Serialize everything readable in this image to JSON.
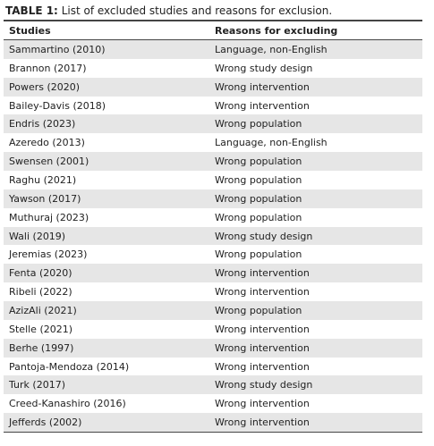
{
  "title": {
    "label": "TABLE 1:",
    "text": "List of excluded studies and reasons for exclusion."
  },
  "table": {
    "headers": [
      "Studies",
      "Reasons for excluding"
    ],
    "rows": [
      [
        "Sammartino (2010)",
        "Language, non-English"
      ],
      [
        "Brannon (2017)",
        "Wrong study design"
      ],
      [
        "Powers (2020)",
        "Wrong intervention"
      ],
      [
        "Bailey-Davis (2018)",
        "Wrong intervention"
      ],
      [
        "Endris (2023)",
        "Wrong population"
      ],
      [
        "Azeredo (2013)",
        "Language, non-English"
      ],
      [
        "Swensen (2001)",
        "Wrong population"
      ],
      [
        "Raghu (2021)",
        "Wrong population"
      ],
      [
        "Yawson (2017)",
        "Wrong population"
      ],
      [
        "Muthuraj (2023)",
        "Wrong population"
      ],
      [
        "Wali (2019)",
        "Wrong study design"
      ],
      [
        "Jeremias (2023)",
        "Wrong population"
      ],
      [
        "Fenta (2020)",
        "Wrong intervention"
      ],
      [
        "Ribeli (2022)",
        "Wrong intervention"
      ],
      [
        "AzizAli (2021)",
        "Wrong population"
      ],
      [
        "Stelle (2021)",
        "Wrong intervention"
      ],
      [
        "Berhe (1997)",
        "Wrong intervention"
      ],
      [
        "Pantoja-Mendoza (2014)",
        "Wrong intervention"
      ],
      [
        "Turk (2017)",
        "Wrong study design"
      ],
      [
        "Creed-Kanashiro (2016)",
        "Wrong intervention"
      ],
      [
        "Jefferds (2002)",
        "Wrong intervention"
      ]
    ]
  }
}
